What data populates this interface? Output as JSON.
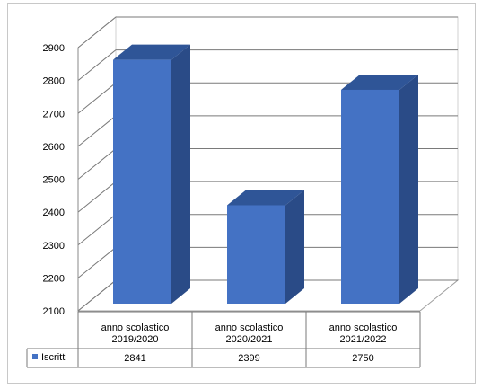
{
  "chart_data": {
    "type": "bar",
    "title": "",
    "xlabel": "",
    "ylabel": "",
    "categories": [
      [
        "anno scolastico",
        "2019/2020"
      ],
      [
        "anno scolastico",
        "2020/2021"
      ],
      [
        "anno scolastico",
        "2021/2022"
      ]
    ],
    "series": [
      {
        "name": "Iscritti",
        "values": [
          2841,
          2399,
          2750
        ],
        "color": "#4472c4"
      }
    ],
    "ylim": [
      2100,
      2900
    ],
    "yticks": [
      2100,
      2200,
      2300,
      2400,
      2500,
      2600,
      2700,
      2800,
      2900
    ],
    "grid": true,
    "legend": "data-table",
    "style": "3d-column"
  }
}
